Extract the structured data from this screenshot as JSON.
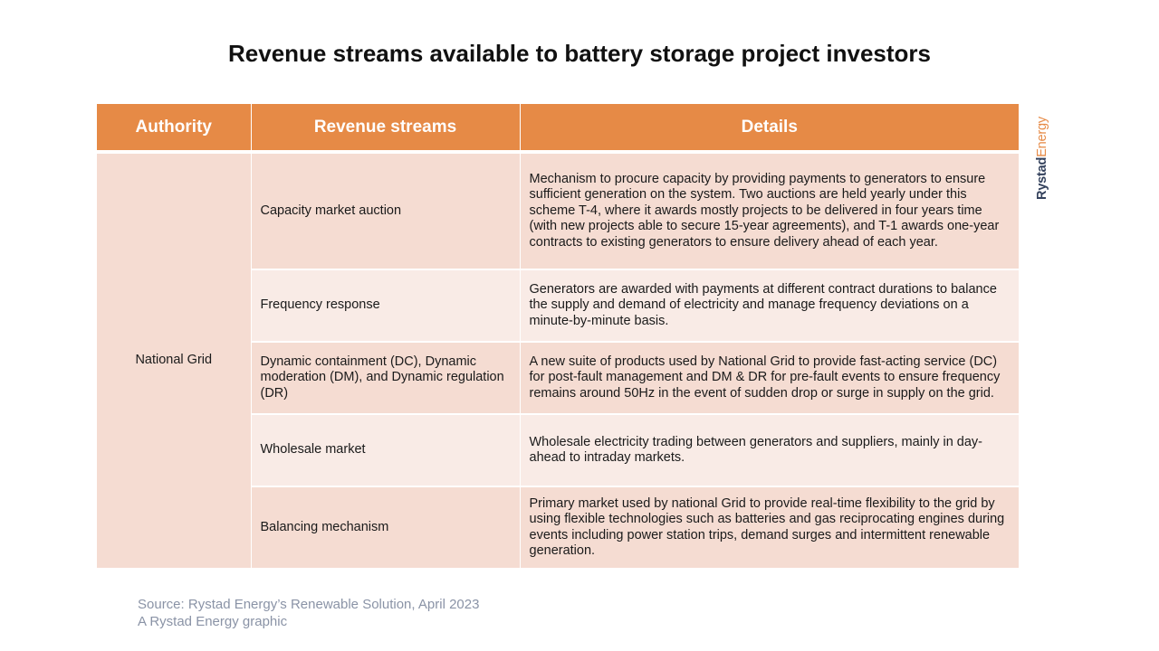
{
  "title": "Revenue streams available to battery storage project investors",
  "table": {
    "headers": [
      "Authority",
      "Revenue streams",
      "Details"
    ],
    "authority": "National Grid",
    "rows": [
      {
        "stream": "Capacity market auction",
        "details": "Mechanism to procure capacity by providing payments to generators to ensure sufficient generation on the system. Two auctions are held yearly under this scheme T-4, where it awards mostly projects to be delivered in four years time (with new projects able to secure 15-year agreements), and T-1 awards one-year contracts to existing generators to ensure delivery ahead of each year."
      },
      {
        "stream": "Frequency response",
        "details": "Generators are awarded with payments at different contract durations to balance the supply and demand of electricity and manage frequency deviations on a minute-by-minute basis."
      },
      {
        "stream": "Dynamic containment (DC), Dynamic moderation (DM), and Dynamic regulation (DR)",
        "details": "A new suite of products used by National Grid to provide fast-acting service (DC) for post-fault management and DM & DR for pre-fault events to ensure frequency remains around 50Hz in the event of sudden drop or surge in supply on the grid."
      },
      {
        "stream": "Wholesale market",
        "details": "Wholesale electricity trading between generators and suppliers, mainly in day-ahead to intraday markets."
      },
      {
        "stream": "Balancing mechanism",
        "details": "Primary market used by national Grid to provide real-time flexibility to the grid by using flexible technologies such as batteries and gas reciprocating engines during events including power station trips, demand surges and intermittent renewable generation."
      }
    ]
  },
  "logo": {
    "part1": "Rystad",
    "part2": "Energy"
  },
  "footer": {
    "source": "Source: Rystad Energy’s Renewable Solution, April 2023",
    "credit": "A Rystad Energy graphic"
  },
  "colors": {
    "header": "#e68a46",
    "row_dark": "#f5dcd2",
    "row_light": "#f9ebe6",
    "logo_dark": "#33415c",
    "logo_accent": "#e68a46"
  }
}
